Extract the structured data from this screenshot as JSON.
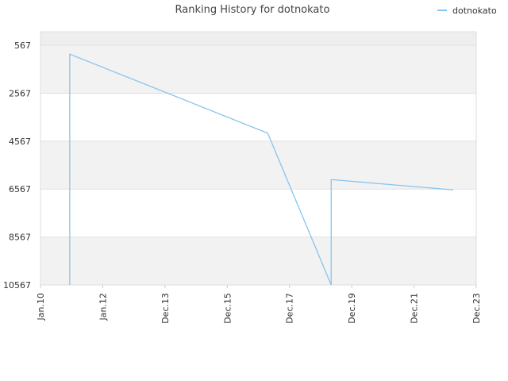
{
  "chart_data": {
    "type": "line",
    "title": "Ranking History for dotnokato",
    "y_inverted": true,
    "ylim": [
      0,
      10567
    ],
    "yticks": [
      567,
      2567,
      4567,
      6567,
      8567,
      10567
    ],
    "xlim": [
      0,
      7
    ],
    "xticks": [
      {
        "value": 0,
        "label": "Jan.10"
      },
      {
        "value": 1,
        "label": "Jan.12"
      },
      {
        "value": 2,
        "label": "Dec.13"
      },
      {
        "value": 3,
        "label": "Dec.15"
      },
      {
        "value": 4,
        "label": "Dec.17"
      },
      {
        "value": 5,
        "label": "Dec.19"
      },
      {
        "value": 6,
        "label": "Dec.21"
      },
      {
        "value": 7,
        "label": "Dec.23"
      }
    ],
    "legend": "top-right",
    "series": [
      {
        "name": "dotnokato",
        "color": "#88c4ee",
        "x": [
          0.47,
          0.47,
          3.65,
          4.67,
          4.67,
          6.63
        ],
        "values": [
          10567,
          934,
          4233,
          10567,
          6167,
          6600
        ]
      }
    ]
  }
}
